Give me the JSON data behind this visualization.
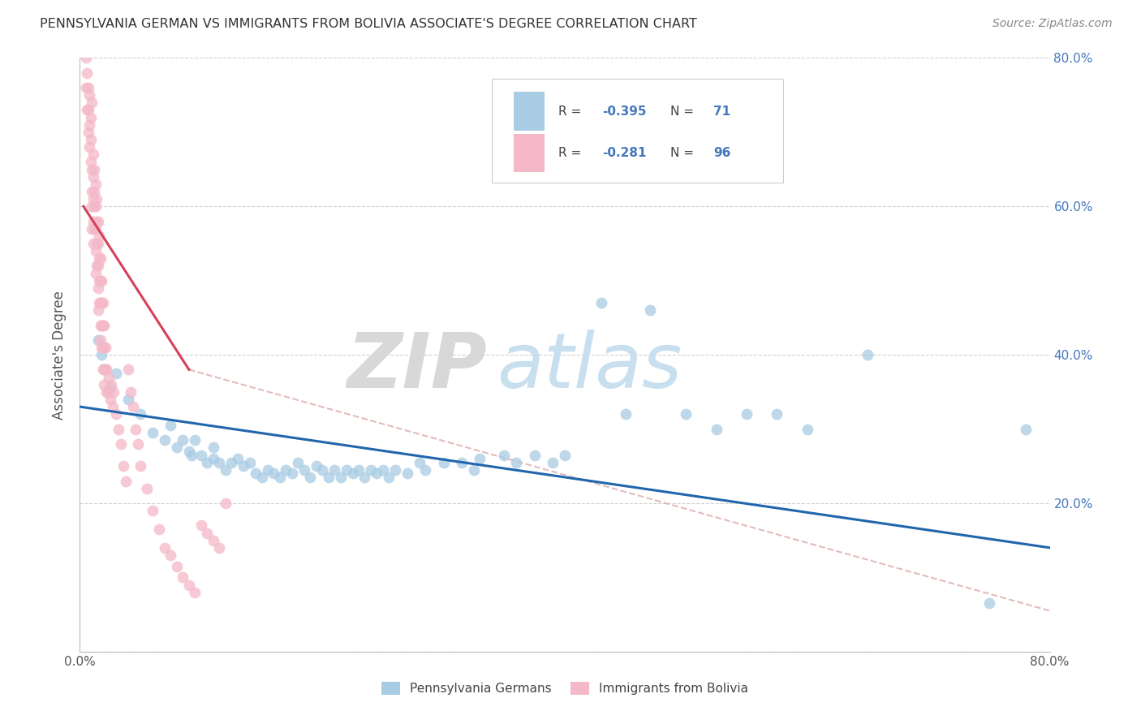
{
  "title": "PENNSYLVANIA GERMAN VS IMMIGRANTS FROM BOLIVIA ASSOCIATE'S DEGREE CORRELATION CHART",
  "source": "Source: ZipAtlas.com",
  "ylabel": "Associate's Degree",
  "xlim": [
    0,
    0.8
  ],
  "ylim": [
    0,
    0.8
  ],
  "blue_color": "#a8cce4",
  "pink_color": "#f4b8c8",
  "blue_line_color": "#2166ac",
  "pink_line_color": "#d6405a",
  "gray_line_color": "#ccaaaa",
  "accent_color": "#4477bb",
  "watermark_zip": "ZIP",
  "watermark_atlas": "atlas",
  "blue_scatter": [
    [
      0.015,
      0.42
    ],
    [
      0.018,
      0.4
    ],
    [
      0.02,
      0.38
    ],
    [
      0.025,
      0.355
    ],
    [
      0.03,
      0.375
    ],
    [
      0.04,
      0.34
    ],
    [
      0.05,
      0.32
    ],
    [
      0.06,
      0.295
    ],
    [
      0.07,
      0.285
    ],
    [
      0.075,
      0.305
    ],
    [
      0.08,
      0.275
    ],
    [
      0.085,
      0.285
    ],
    [
      0.09,
      0.27
    ],
    [
      0.092,
      0.265
    ],
    [
      0.095,
      0.285
    ],
    [
      0.1,
      0.265
    ],
    [
      0.105,
      0.255
    ],
    [
      0.11,
      0.26
    ],
    [
      0.11,
      0.275
    ],
    [
      0.115,
      0.255
    ],
    [
      0.12,
      0.245
    ],
    [
      0.125,
      0.255
    ],
    [
      0.13,
      0.26
    ],
    [
      0.135,
      0.25
    ],
    [
      0.14,
      0.255
    ],
    [
      0.145,
      0.24
    ],
    [
      0.15,
      0.235
    ],
    [
      0.155,
      0.245
    ],
    [
      0.16,
      0.24
    ],
    [
      0.165,
      0.235
    ],
    [
      0.17,
      0.245
    ],
    [
      0.175,
      0.24
    ],
    [
      0.18,
      0.255
    ],
    [
      0.185,
      0.245
    ],
    [
      0.19,
      0.235
    ],
    [
      0.195,
      0.25
    ],
    [
      0.2,
      0.245
    ],
    [
      0.205,
      0.235
    ],
    [
      0.21,
      0.245
    ],
    [
      0.215,
      0.235
    ],
    [
      0.22,
      0.245
    ],
    [
      0.225,
      0.24
    ],
    [
      0.23,
      0.245
    ],
    [
      0.235,
      0.235
    ],
    [
      0.24,
      0.245
    ],
    [
      0.245,
      0.24
    ],
    [
      0.25,
      0.245
    ],
    [
      0.255,
      0.235
    ],
    [
      0.26,
      0.245
    ],
    [
      0.27,
      0.24
    ],
    [
      0.28,
      0.255
    ],
    [
      0.285,
      0.245
    ],
    [
      0.3,
      0.255
    ],
    [
      0.315,
      0.255
    ],
    [
      0.325,
      0.245
    ],
    [
      0.33,
      0.26
    ],
    [
      0.35,
      0.265
    ],
    [
      0.36,
      0.255
    ],
    [
      0.375,
      0.265
    ],
    [
      0.39,
      0.255
    ],
    [
      0.4,
      0.265
    ],
    [
      0.43,
      0.47
    ],
    [
      0.45,
      0.32
    ],
    [
      0.47,
      0.46
    ],
    [
      0.5,
      0.32
    ],
    [
      0.525,
      0.3
    ],
    [
      0.55,
      0.32
    ],
    [
      0.575,
      0.32
    ],
    [
      0.6,
      0.3
    ],
    [
      0.65,
      0.4
    ],
    [
      0.75,
      0.065
    ],
    [
      0.78,
      0.3
    ]
  ],
  "pink_scatter": [
    [
      0.005,
      0.76
    ],
    [
      0.006,
      0.73
    ],
    [
      0.007,
      0.7
    ],
    [
      0.008,
      0.68
    ],
    [
      0.009,
      0.72
    ],
    [
      0.009,
      0.66
    ],
    [
      0.01,
      0.74
    ],
    [
      0.01,
      0.65
    ],
    [
      0.01,
      0.62
    ],
    [
      0.01,
      0.6
    ],
    [
      0.011,
      0.67
    ],
    [
      0.011,
      0.64
    ],
    [
      0.011,
      0.61
    ],
    [
      0.011,
      0.58
    ],
    [
      0.012,
      0.65
    ],
    [
      0.012,
      0.62
    ],
    [
      0.012,
      0.6
    ],
    [
      0.012,
      0.57
    ],
    [
      0.013,
      0.63
    ],
    [
      0.013,
      0.6
    ],
    [
      0.013,
      0.57
    ],
    [
      0.013,
      0.54
    ],
    [
      0.014,
      0.61
    ],
    [
      0.014,
      0.58
    ],
    [
      0.014,
      0.55
    ],
    [
      0.014,
      0.52
    ],
    [
      0.015,
      0.58
    ],
    [
      0.015,
      0.55
    ],
    [
      0.015,
      0.52
    ],
    [
      0.015,
      0.49
    ],
    [
      0.016,
      0.56
    ],
    [
      0.016,
      0.53
    ],
    [
      0.016,
      0.5
    ],
    [
      0.016,
      0.47
    ],
    [
      0.017,
      0.53
    ],
    [
      0.017,
      0.5
    ],
    [
      0.017,
      0.47
    ],
    [
      0.017,
      0.44
    ],
    [
      0.018,
      0.5
    ],
    [
      0.018,
      0.47
    ],
    [
      0.018,
      0.44
    ],
    [
      0.018,
      0.41
    ],
    [
      0.019,
      0.47
    ],
    [
      0.019,
      0.44
    ],
    [
      0.019,
      0.41
    ],
    [
      0.019,
      0.38
    ],
    [
      0.02,
      0.44
    ],
    [
      0.02,
      0.41
    ],
    [
      0.02,
      0.38
    ],
    [
      0.021,
      0.41
    ],
    [
      0.021,
      0.38
    ],
    [
      0.022,
      0.38
    ],
    [
      0.022,
      0.35
    ],
    [
      0.023,
      0.35
    ],
    [
      0.024,
      0.37
    ],
    [
      0.025,
      0.34
    ],
    [
      0.026,
      0.36
    ],
    [
      0.027,
      0.33
    ],
    [
      0.028,
      0.35
    ],
    [
      0.03,
      0.32
    ],
    [
      0.032,
      0.3
    ],
    [
      0.034,
      0.28
    ],
    [
      0.036,
      0.25
    ],
    [
      0.038,
      0.23
    ],
    [
      0.04,
      0.38
    ],
    [
      0.042,
      0.35
    ],
    [
      0.044,
      0.33
    ],
    [
      0.046,
      0.3
    ],
    [
      0.048,
      0.28
    ],
    [
      0.05,
      0.25
    ],
    [
      0.055,
      0.22
    ],
    [
      0.06,
      0.19
    ],
    [
      0.065,
      0.165
    ],
    [
      0.07,
      0.14
    ],
    [
      0.075,
      0.13
    ],
    [
      0.08,
      0.115
    ],
    [
      0.085,
      0.1
    ],
    [
      0.09,
      0.09
    ],
    [
      0.095,
      0.08
    ],
    [
      0.1,
      0.17
    ],
    [
      0.105,
      0.16
    ],
    [
      0.11,
      0.15
    ],
    [
      0.115,
      0.14
    ],
    [
      0.12,
      0.2
    ],
    [
      0.005,
      0.8
    ],
    [
      0.006,
      0.78
    ],
    [
      0.007,
      0.76
    ],
    [
      0.007,
      0.73
    ],
    [
      0.008,
      0.75
    ],
    [
      0.008,
      0.71
    ],
    [
      0.009,
      0.69
    ],
    [
      0.01,
      0.57
    ],
    [
      0.011,
      0.55
    ],
    [
      0.013,
      0.51
    ],
    [
      0.015,
      0.46
    ],
    [
      0.017,
      0.42
    ],
    [
      0.02,
      0.36
    ]
  ],
  "blue_trendline": [
    [
      0.0,
      0.33
    ],
    [
      0.8,
      0.14
    ]
  ],
  "pink_trendline": [
    [
      0.003,
      0.6
    ],
    [
      0.09,
      0.38
    ]
  ],
  "gray_trendline": [
    [
      0.09,
      0.38
    ],
    [
      0.8,
      0.055
    ]
  ]
}
